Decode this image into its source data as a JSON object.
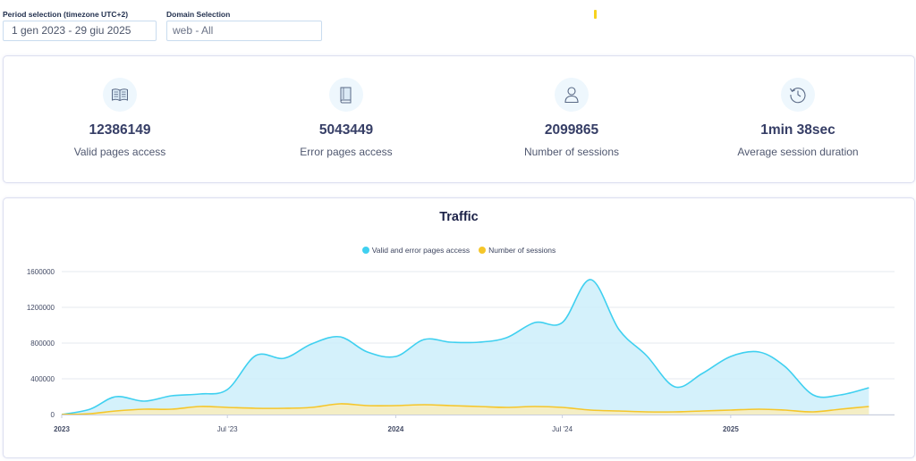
{
  "filters": {
    "period": {
      "label": "Period selection (timezone UTC+2)",
      "value": "1 gen 2023 - 29 giu 2025"
    },
    "domain": {
      "label": "Domain Selection",
      "value": "web - All"
    }
  },
  "stats": [
    {
      "icon": "open-book-icon",
      "value": "12386149",
      "label": "Valid pages access"
    },
    {
      "icon": "book-icon",
      "value": "5043449",
      "label": "Error pages access"
    },
    {
      "icon": "user-icon",
      "value": "2099865",
      "label": "Number of sessions"
    },
    {
      "icon": "clock-history-icon",
      "value": "1min 38sec",
      "label": "Average session duration"
    }
  ],
  "chart": {
    "title": "Traffic",
    "colors": {
      "pages": "#3fd0f0",
      "sessions": "#f5c62a",
      "pages_fill": "#c9eefa",
      "sessions_fill": "#fbeeb8"
    }
  },
  "chart_data": {
    "type": "area",
    "title": "Traffic",
    "legend_position": "top",
    "grid": true,
    "ylim": [
      0,
      1600000
    ],
    "yticks": [
      "0",
      "400000",
      "800000",
      "1200000",
      "1600000"
    ],
    "xtick_labels": [
      {
        "label": "2023",
        "x": "2023-01-01",
        "bold": true
      },
      {
        "label": "Jul '23",
        "x": "2023-07-01",
        "bold": false
      },
      {
        "label": "2024",
        "x": "2024-01-01",
        "bold": true
      },
      {
        "label": "Jul '24",
        "x": "2024-07-01",
        "bold": false
      },
      {
        "label": "2025",
        "x": "2025-01-01",
        "bold": true
      }
    ],
    "x": [
      "2023-01-01",
      "2023-02-01",
      "2023-03-01",
      "2023-04-01",
      "2023-05-01",
      "2023-06-01",
      "2023-07-01",
      "2023-08-01",
      "2023-09-01",
      "2023-10-01",
      "2023-11-01",
      "2023-12-01",
      "2024-01-01",
      "2024-02-01",
      "2024-03-01",
      "2024-04-01",
      "2024-05-01",
      "2024-06-01",
      "2024-07-01",
      "2024-08-01",
      "2024-09-01",
      "2024-10-01",
      "2024-11-01",
      "2024-12-01",
      "2025-01-01",
      "2025-02-01",
      "2025-03-01",
      "2025-04-01",
      "2025-05-01",
      "2025-06-01"
    ],
    "series": [
      {
        "name": "Valid and error pages access",
        "values": [
          0,
          60000,
          200000,
          150000,
          210000,
          230000,
          280000,
          660000,
          630000,
          790000,
          870000,
          700000,
          650000,
          840000,
          810000,
          810000,
          860000,
          1030000,
          1030000,
          1510000,
          950000,
          660000,
          310000,
          460000,
          650000,
          700000,
          540000,
          220000,
          220000,
          300000
        ]
      },
      {
        "name": "Number of sessions",
        "values": [
          0,
          10000,
          40000,
          60000,
          60000,
          90000,
          80000,
          70000,
          70000,
          80000,
          120000,
          100000,
          100000,
          110000,
          100000,
          90000,
          80000,
          90000,
          80000,
          50000,
          40000,
          30000,
          30000,
          40000,
          50000,
          60000,
          50000,
          30000,
          60000,
          90000
        ]
      }
    ]
  }
}
